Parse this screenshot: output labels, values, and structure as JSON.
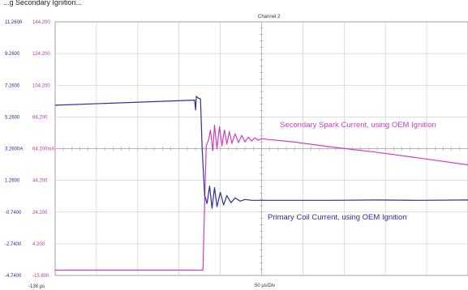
{
  "header_fragment": "...g Secondary Ignition...",
  "chart_data": {
    "type": "line",
    "title": "Channel 2",
    "x_start_label": "-138 µs",
    "x_div_label": "50 µs/Div",
    "x_range_us": [
      -138,
      362
    ],
    "y_left_label": "A",
    "y_right_label": "mA",
    "y_left_ticks": [
      "11.2600",
      "9.2600",
      "7.2600",
      "5.2600",
      "3.2600",
      "1.2600",
      "-0.7400",
      "-2.7400",
      "-4.7400"
    ],
    "y_right_ticks": [
      "144.200",
      "124.200",
      "104.200",
      "84.200",
      "64.200",
      "44.200",
      "24.200",
      "4.200",
      "-15.800"
    ],
    "y_left_range": [
      -4.74,
      11.26
    ],
    "y_right_range": [
      -15.8,
      144.2
    ],
    "grid": true,
    "series": [
      {
        "name": "Secondary Spark Current, using OEM Ignition",
        "color": "#cc3fc4",
        "axis": "right",
        "points": [
          [
            -138,
            -12.5
          ],
          [
            41,
            -12.5
          ],
          [
            43,
            30
          ],
          [
            45,
            66
          ],
          [
            48,
            70
          ],
          [
            50,
            76
          ],
          [
            53,
            63
          ],
          [
            55,
            79
          ],
          [
            58,
            64
          ],
          [
            61,
            78
          ],
          [
            64,
            66
          ],
          [
            67,
            76
          ],
          [
            70,
            67
          ],
          [
            73,
            75
          ],
          [
            76,
            67.5
          ],
          [
            80,
            73.5
          ],
          [
            84,
            68
          ],
          [
            88,
            72.5
          ],
          [
            92,
            68.5
          ],
          [
            96,
            71.5
          ],
          [
            100,
            69
          ],
          [
            104,
            71
          ],
          [
            108,
            69.5
          ],
          [
            112,
            70.5
          ],
          [
            120,
            70
          ],
          [
            150,
            68.5
          ],
          [
            200,
            65
          ],
          [
            250,
            62
          ],
          [
            300,
            58.5
          ],
          [
            362,
            54
          ]
        ]
      },
      {
        "name": "Primary Coil Current, using OEM Ignition",
        "color": "#2d2f9a",
        "axis": "left",
        "points": [
          [
            -138,
            6.0
          ],
          [
            31,
            6.32
          ],
          [
            32,
            5.7
          ],
          [
            33,
            6.56
          ],
          [
            35,
            6.46
          ],
          [
            38,
            6.4
          ],
          [
            40,
            3.3
          ],
          [
            43,
            0.3
          ],
          [
            46,
            -0.2
          ],
          [
            49,
            0.9
          ],
          [
            52,
            -0.5
          ],
          [
            55,
            0.8
          ],
          [
            58,
            -0.4
          ],
          [
            62,
            0.5
          ],
          [
            66,
            -0.3
          ],
          [
            70,
            0.3
          ],
          [
            75,
            -0.15
          ],
          [
            80,
            0.15
          ],
          [
            86,
            -0.05
          ],
          [
            92,
            0.05
          ],
          [
            100,
            0.0
          ],
          [
            150,
            0.0
          ],
          [
            200,
            0.0
          ],
          [
            250,
            0.02
          ],
          [
            300,
            0.0
          ],
          [
            362,
            0.02
          ]
        ]
      }
    ],
    "annotations": [
      "Secondary Spark Current, using  OEM Ignition",
      "Primary Coil Current, using OEM Ignition"
    ]
  }
}
